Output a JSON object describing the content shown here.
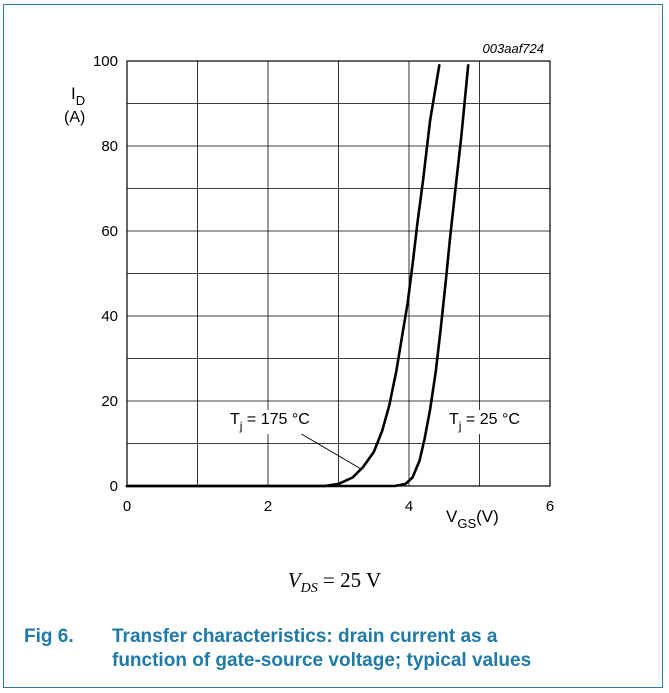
{
  "chart_data": {
    "type": "line",
    "ref_code": "003aaf724",
    "ylabel_main": "I",
    "ylabel_sub": "D",
    "ylabel_unit": "(A)",
    "xlabel_main": "V",
    "xlabel_sub": "GS",
    "xlabel_unit": "(V)",
    "xlim": [
      0,
      6
    ],
    "ylim": [
      0,
      100
    ],
    "x_ticks": [
      "0",
      "2",
      "4",
      "6"
    ],
    "y_ticks": [
      "0",
      "20",
      "40",
      "60",
      "80",
      "100"
    ],
    "grid": true,
    "series": [
      {
        "name": "Tj = 175 °C",
        "label_main": "T",
        "label_sub": "j",
        "label_value": " = 175 ",
        "label_unit": "°C",
        "x": [
          0,
          1,
          2,
          2.8,
          3.0,
          3.2,
          3.35,
          3.5,
          3.62,
          3.72,
          3.82,
          3.9,
          3.98,
          4.05,
          4.12,
          4.2,
          4.3,
          4.43
        ],
        "y": [
          0,
          0,
          0,
          0,
          0.5,
          2,
          4.5,
          8,
          13,
          19,
          27,
          35,
          43,
          52,
          62,
          72,
          86,
          99
        ]
      },
      {
        "name": "Tj = 25 °C",
        "label_main": "T",
        "label_sub": "j",
        "label_value": " = 25 ",
        "label_unit": "°C",
        "x": [
          0,
          1,
          2,
          3,
          3.8,
          3.95,
          4.05,
          4.15,
          4.22,
          4.3,
          4.38,
          4.45,
          4.52,
          4.58,
          4.66,
          4.74,
          4.84
        ],
        "y": [
          0,
          0,
          0,
          0,
          0,
          0.5,
          2,
          6,
          11,
          18,
          27,
          37,
          48,
          58,
          70,
          82,
          99
        ]
      }
    ]
  },
  "condition": {
    "main": "V",
    "sub": "DS",
    "rest": " = 25 V"
  },
  "caption": {
    "label": "Fig 6.",
    "line1": "Transfer characteristics: drain current as a",
    "line2": "function of gate-source voltage; typical values"
  }
}
